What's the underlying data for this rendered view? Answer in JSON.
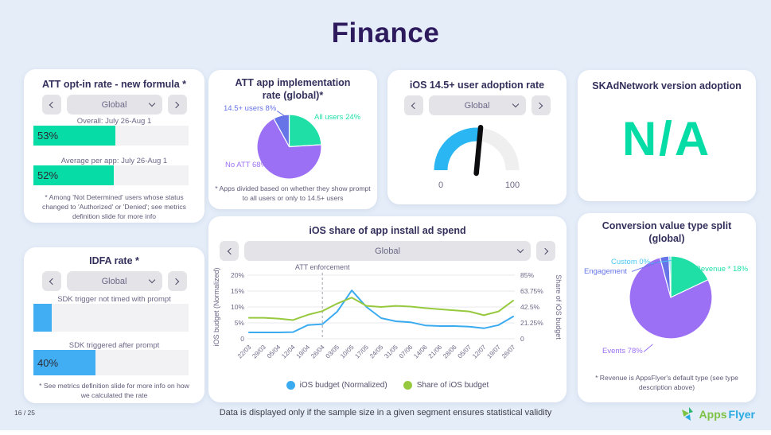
{
  "page": {
    "title": "Finance",
    "page_number": "16 / 25",
    "footer_note": "Data is displayed only if the sample size in a given segment ensures statistical validity",
    "logo_apps": "Apps",
    "logo_flyer": "Flyer"
  },
  "colors": {
    "teal": "#06DCA6",
    "purple": "#9B70F5",
    "indigo": "#6674E8",
    "cyan": "#49C6F2",
    "gauge_blue": "#29B6F2",
    "bar_blue": "#41AEF3",
    "line_blue": "#3BABF0",
    "line_green": "#97C93F",
    "heading": "#2D1B5E"
  },
  "cards": {
    "att_opt_in": {
      "title": "ATT opt-in rate - new formula *",
      "selector_value": "Global",
      "bars": [
        {
          "label": "Overall: July 26-Aug 1",
          "value": 53,
          "text": "53%"
        },
        {
          "label": "Average per app: July 26-Aug 1",
          "value": 52,
          "text": "52%"
        }
      ],
      "footnote": "* Among 'Not Determined' users whose status changed to 'Authorized' or 'Denied'; see metrics definition slide for more info"
    },
    "att_implementation": {
      "title_line1": "ATT app implementation",
      "title_line2": "rate (global)*",
      "footnote": "* Apps divided based on whether they show prompt to all users or only to 14.5+ users"
    },
    "ios_adoption": {
      "title": "iOS 14.5+ user adoption rate",
      "selector_value": "Global"
    },
    "skad": {
      "title": "SKAdNetwork version adoption",
      "value": "N/A"
    },
    "idfa": {
      "title": "IDFA rate *",
      "selector_value": "Global",
      "bars": [
        {
          "label": "SDK trigger not timed with prompt",
          "value": 12,
          "text": ""
        },
        {
          "label": "SDK triggered after prompt",
          "value": 40,
          "text": "40%"
        }
      ],
      "footnote": "* See metrics definition slide for more info on how we calculated the rate"
    },
    "ad_spend": {
      "title": "iOS share of app install ad spend",
      "selector_value": "Global"
    },
    "conversion_split": {
      "title_line1": "Conversion value type split",
      "title_line2": "(global)",
      "footnote": "* Revenue is AppsFlyer's default type (see type description above)"
    }
  },
  "chart_data": [
    {
      "id": "att_implementation_pie",
      "type": "pie",
      "title": "ATT app implementation rate (global)*",
      "start": "top",
      "direction": "clockwise",
      "slices": [
        {
          "label": "All users",
          "value": 24,
          "color": "#1FDFA7",
          "label_text": "All users 24%"
        },
        {
          "label": "No ATT",
          "value": 68,
          "color": "#9B70F5",
          "label_text": "No ATT 68%"
        },
        {
          "label": "14.5+ users",
          "value": 8,
          "color": "#6674E8",
          "label_text": "14.5+ users 8%"
        }
      ]
    },
    {
      "id": "ios_adoption_gauge",
      "type": "gauge",
      "title": "iOS 14.5+ user adoption rate",
      "min": 0,
      "max": 100,
      "min_label": "0",
      "max_label": "100",
      "value": 53,
      "color": "#29B6F2"
    },
    {
      "id": "ad_spend_lines",
      "type": "line",
      "title": "iOS share of app install ad spend",
      "x": [
        "22/03",
        "29/03",
        "05/04",
        "12/04",
        "19/04",
        "26/04",
        "03/05",
        "10/05",
        "17/05",
        "24/05",
        "31/05",
        "07/06",
        "14/06",
        "21/06",
        "28/06",
        "05/07",
        "12/07",
        "19/07",
        "26/07"
      ],
      "series": [
        {
          "name": "iOS budget (Normalized)",
          "axis": "left",
          "color": "#3BABF0",
          "values": [
            2,
            2,
            2,
            2.1,
            4.3,
            4.6,
            8.5,
            15.2,
            10,
            6.5,
            5.5,
            5.2,
            4.2,
            4,
            4,
            3.8,
            3.3,
            4.3,
            7
          ]
        },
        {
          "name": "Share of iOS budget",
          "axis": "right",
          "color": "#97C93F",
          "values": [
            28,
            28,
            27,
            25,
            32,
            37,
            47,
            55,
            44,
            42.5,
            44,
            43,
            41,
            39.5,
            38,
            36.5,
            31.5,
            36.5,
            51
          ]
        }
      ],
      "left_axis": {
        "label": "iOS budget (Normalized)",
        "ticks": [
          "0",
          "5%",
          "10%",
          "15%",
          "20%"
        ],
        "min": 0,
        "max": 20
      },
      "right_axis": {
        "label": "Share of iOS budget",
        "ticks": [
          "0",
          "21.25%",
          "42.5%",
          "63.75%",
          "85%"
        ],
        "min": 0,
        "max": 85
      },
      "annotation": {
        "text": "ATT enforcement",
        "x": "26/04"
      },
      "grid": true,
      "legend_position": "bottom"
    },
    {
      "id": "conversion_value_pie",
      "type": "pie",
      "title": "Conversion value type split (global)",
      "start": "top",
      "direction": "clockwise",
      "slices": [
        {
          "label": "Revenue *",
          "value": 18,
          "color": "#1FDFA7",
          "label_text": "Revenue * 18%"
        },
        {
          "label": "Events",
          "value": 78,
          "color": "#9B70F5",
          "label_text": "Events 78%"
        },
        {
          "label": "Engagement",
          "value": 3.5,
          "color": "#6674E8",
          "label_text": "Engagement"
        },
        {
          "label": "Custom",
          "value": 0,
          "color": "#49C6F2",
          "label_text": "Custom 0%"
        }
      ]
    }
  ]
}
